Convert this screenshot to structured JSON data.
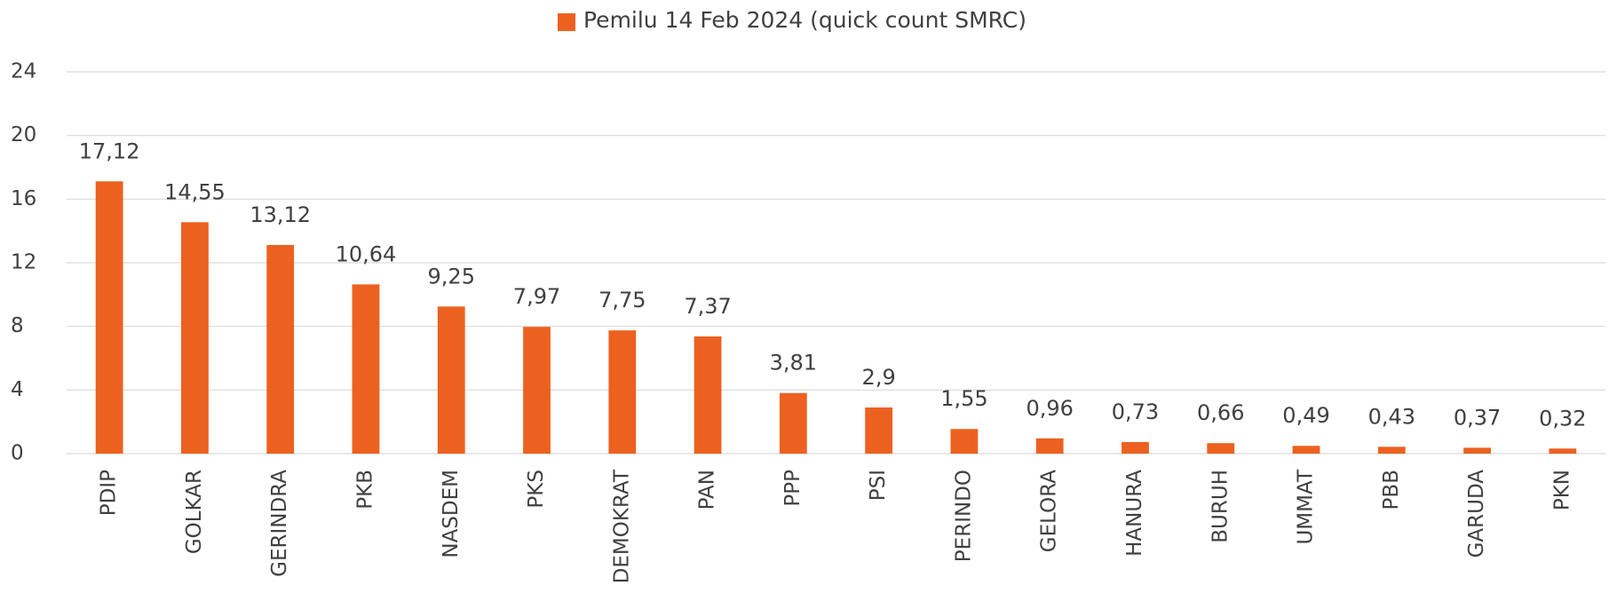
{
  "chart_data": {
    "type": "bar",
    "categories": [
      "PDIP",
      "GOLKAR",
      "GERINDRA",
      "PKB",
      "NASDEM",
      "PKS",
      "DEMOKRAT",
      "PAN",
      "PPP",
      "PSI",
      "PERINDO",
      "GELORA",
      "HANURA",
      "BURUH",
      "UMMAT",
      "PBB",
      "GARUDA",
      "PKN"
    ],
    "series": [
      {
        "name": "Pemilu 14 Feb 2024 (quick count SMRC)",
        "color": "#ec6120",
        "values": [
          17.12,
          14.55,
          13.12,
          10.64,
          9.25,
          7.97,
          7.75,
          7.37,
          3.81,
          2.9,
          1.55,
          0.96,
          0.73,
          0.66,
          0.49,
          0.43,
          0.37,
          0.32
        ],
        "value_labels": [
          "17,12",
          "14,55",
          "13,12",
          "10,64",
          "9,25",
          "7,97",
          "7,75",
          "7,37",
          "3,81",
          "2,9",
          "1,55",
          "0,96",
          "0,73",
          "0,66",
          "0,49",
          "0,43",
          "0,37",
          "0,32"
        ]
      }
    ],
    "ylim": [
      0,
      24
    ],
    "yticks": [
      0,
      4,
      8,
      12,
      16,
      20,
      24
    ],
    "grid": true,
    "legend": "top"
  }
}
